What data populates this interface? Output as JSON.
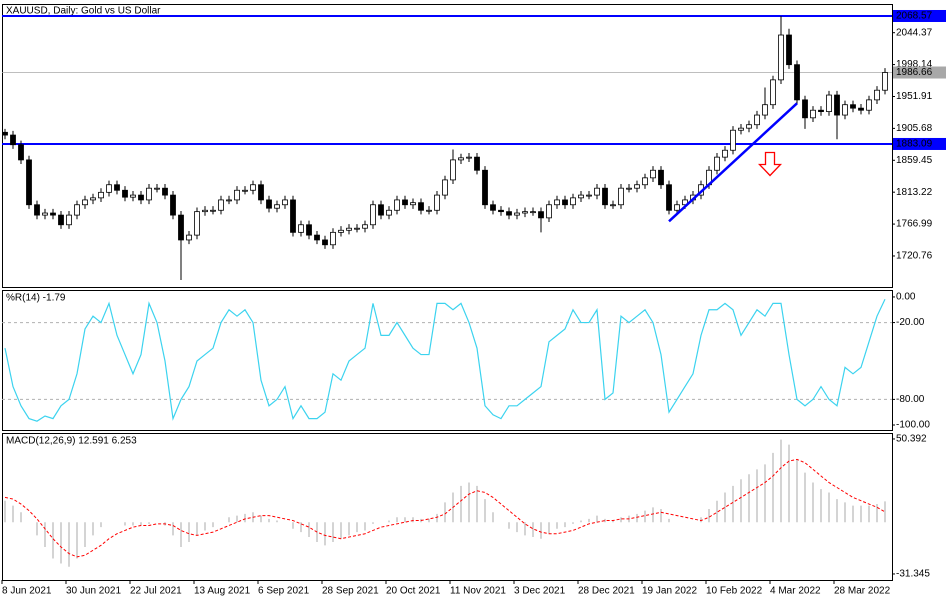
{
  "chart_data": [
    {
      "type": "candlestick",
      "title": "XAUUSD, Daily:  Gold vs US Dollar",
      "categories": [
        "8 Jun 2021",
        null,
        null,
        null,
        null,
        null,
        null,
        null,
        "30 Jun 2021",
        null,
        null,
        null,
        null,
        null,
        null,
        null,
        "22 Jul 2021",
        null,
        null,
        null,
        null,
        null,
        null,
        null,
        "13 Aug 2021",
        null,
        null,
        null,
        null,
        null,
        null,
        null,
        "6 Sep 2021",
        null,
        null,
        null,
        null,
        null,
        null,
        null,
        "28 Sep 2021",
        null,
        null,
        null,
        null,
        null,
        null,
        null,
        "20 Oct 2021",
        null,
        null,
        null,
        null,
        null,
        null,
        null,
        "11 Nov 2021",
        null,
        null,
        null,
        null,
        null,
        null,
        null,
        "3 Dec 2021",
        null,
        null,
        null,
        null,
        null,
        null,
        null,
        "28 Dec 2021",
        null,
        null,
        null,
        null,
        null,
        null,
        null,
        "19 Jan 2022",
        null,
        null,
        null,
        null,
        null,
        null,
        null,
        "10 Feb 2022",
        null,
        null,
        null,
        null,
        null,
        null,
        null,
        "4 Mar 2022",
        null,
        null,
        null,
        null,
        null,
        null,
        null,
        "28 Mar 2022",
        null,
        null,
        null,
        null,
        null,
        null
      ],
      "open": [
        1900,
        1896,
        1882,
        1860,
        1795,
        1780,
        1783,
        1780,
        1766,
        1780,
        1795,
        1802,
        1805,
        1813,
        1824,
        1816,
        1806,
        1809,
        1802,
        1819,
        1819,
        1809,
        1780,
        1744,
        1751,
        1785,
        1787,
        1787,
        1802,
        1802,
        1816,
        1816,
        1824,
        1802,
        1790,
        1795,
        1802,
        1755,
        1766,
        1751,
        1744,
        1737,
        1755,
        1758,
        1761,
        1761,
        1766,
        1795,
        1780,
        1787,
        1802,
        1795,
        1798,
        1787,
        1787,
        1809,
        1831,
        1860,
        1863,
        1864,
        1845,
        1795,
        1787,
        1785,
        1780,
        1783,
        1785,
        1785,
        1776,
        1795,
        1802,
        1795,
        1805,
        1809,
        1809,
        1819,
        1795,
        1795,
        1819,
        1819,
        1824,
        1834,
        1845,
        1824,
        1787,
        1795,
        1802,
        1809,
        1824,
        1845,
        1864,
        1874,
        1903,
        1906,
        1911,
        1925,
        1940,
        1976,
        2041,
        1998,
        1947,
        1921,
        1932,
        1930,
        1954,
        1925,
        1940,
        1935,
        1932,
        1947,
        1961
      ],
      "high": [
        1905,
        1902,
        1888,
        1866,
        1801,
        1789,
        1789,
        1786,
        1786,
        1801,
        1808,
        1811,
        1819,
        1830,
        1830,
        1822,
        1815,
        1815,
        1825,
        1825,
        1825,
        1815,
        1786,
        1757,
        1791,
        1793,
        1793,
        1808,
        1808,
        1822,
        1822,
        1830,
        1830,
        1808,
        1801,
        1808,
        1808,
        1772,
        1772,
        1757,
        1750,
        1761,
        1764,
        1767,
        1767,
        1772,
        1801,
        1801,
        1793,
        1808,
        1808,
        1804,
        1804,
        1793,
        1815,
        1837,
        1875,
        1869,
        1870,
        1870,
        1851,
        1801,
        1793,
        1791,
        1789,
        1791,
        1791,
        1791,
        1801,
        1808,
        1808,
        1811,
        1815,
        1815,
        1825,
        1825,
        1801,
        1825,
        1825,
        1830,
        1840,
        1851,
        1851,
        1830,
        1801,
        1808,
        1815,
        1830,
        1851,
        1870,
        1880,
        1909,
        1912,
        1917,
        1931,
        1965,
        1982,
        2068.57,
        2050,
        2004,
        1953,
        1938,
        1938,
        1960,
        1960,
        1946,
        1946,
        1941,
        1953,
        1967,
        1993
      ],
      "low": [
        1890,
        1876,
        1854,
        1789,
        1774,
        1774,
        1774,
        1760,
        1760,
        1774,
        1789,
        1796,
        1799,
        1807,
        1810,
        1800,
        1800,
        1796,
        1796,
        1813,
        1803,
        1774,
        1686,
        1738,
        1745,
        1779,
        1781,
        1781,
        1796,
        1796,
        1810,
        1810,
        1796,
        1784,
        1784,
        1789,
        1749,
        1749,
        1745,
        1738,
        1731,
        1731,
        1749,
        1752,
        1755,
        1755,
        1760,
        1774,
        1774,
        1781,
        1789,
        1789,
        1781,
        1781,
        1781,
        1803,
        1825,
        1854,
        1857,
        1839,
        1789,
        1781,
        1779,
        1774,
        1774,
        1777,
        1779,
        1755,
        1770,
        1789,
        1789,
        1789,
        1799,
        1803,
        1803,
        1789,
        1789,
        1789,
        1813,
        1813,
        1818,
        1828,
        1818,
        1781,
        1781,
        1789,
        1796,
        1803,
        1818,
        1839,
        1858,
        1868,
        1897,
        1900,
        1905,
        1919,
        1934,
        1970,
        1992,
        1941,
        1905,
        1915,
        1924,
        1924,
        1890,
        1919,
        1929,
        1926,
        1926,
        1941,
        1955
      ],
      "close": [
        1896,
        1882,
        1860,
        1795,
        1780,
        1783,
        1780,
        1766,
        1780,
        1795,
        1802,
        1805,
        1813,
        1824,
        1816,
        1806,
        1809,
        1802,
        1819,
        1819,
        1809,
        1780,
        1744,
        1751,
        1785,
        1787,
        1787,
        1802,
        1802,
        1816,
        1816,
        1824,
        1802,
        1790,
        1795,
        1802,
        1755,
        1766,
        1751,
        1744,
        1737,
        1755,
        1758,
        1761,
        1761,
        1766,
        1795,
        1780,
        1787,
        1802,
        1795,
        1798,
        1787,
        1787,
        1809,
        1831,
        1860,
        1863,
        1864,
        1845,
        1795,
        1787,
        1785,
        1780,
        1783,
        1785,
        1785,
        1776,
        1795,
        1802,
        1795,
        1805,
        1809,
        1809,
        1819,
        1795,
        1795,
        1819,
        1819,
        1824,
        1834,
        1845,
        1824,
        1787,
        1795,
        1802,
        1809,
        1824,
        1845,
        1864,
        1874,
        1903,
        1906,
        1911,
        1925,
        1940,
        1976,
        2041,
        1998,
        1947,
        1921,
        1932,
        1930,
        1954,
        1925,
        1940,
        1935,
        1932,
        1947,
        1961,
        1986.66
      ],
      "up_color": "#ffffff",
      "down_color": "#000000",
      "ylim": [
        1675.8,
        2084.5
      ],
      "yticks": [
        2044.37,
        1998.14,
        1951.91,
        1905.68,
        1859.45,
        1813.22,
        1766.99,
        1720.76
      ],
      "hlines": [
        {
          "value": 2068.57,
          "label": "2068.57",
          "color": "#0000ff"
        },
        {
          "value": 1883.09,
          "label": "1883.09",
          "color": "#0000ff"
        }
      ],
      "last_price": {
        "value": 1986.66,
        "label": "1986.66",
        "color": "#a8a8a8"
      },
      "trendline": {
        "x": [
          83,
          99
        ],
        "y": [
          1771,
          1942
        ],
        "color": "#0000ff"
      }
    },
    {
      "type": "line",
      "title": "%R(14) -1.79",
      "color": "#3cd3ef",
      "values": [
        -40,
        -70,
        -85,
        -95,
        -97,
        -93,
        -95,
        -85,
        -80,
        -60,
        -25,
        -15,
        -20,
        -5,
        -30,
        -45,
        -60,
        -45,
        -5,
        -20,
        -50,
        -95,
        -80,
        -70,
        -50,
        -45,
        -40,
        -20,
        -10,
        -15,
        -10,
        -20,
        -65,
        -85,
        -80,
        -70,
        -95,
        -85,
        -95,
        -95,
        -90,
        -60,
        -65,
        -50,
        -45,
        -40,
        -5,
        -30,
        -30,
        -20,
        -30,
        -40,
        -45,
        -45,
        -5,
        -5,
        -10,
        -5,
        -20,
        -40,
        -85,
        -92,
        -95,
        -85,
        -85,
        -80,
        -75,
        -70,
        -35,
        -30,
        -25,
        -10,
        -20,
        -20,
        -10,
        -80,
        -75,
        -15,
        -20,
        -15,
        -10,
        -20,
        -45,
        -90,
        -80,
        -70,
        -60,
        -30,
        -10,
        -10,
        -5,
        -10,
        -30,
        -20,
        -10,
        -15,
        -5,
        -5,
        -45,
        -80,
        -85,
        -80,
        -70,
        -80,
        -85,
        -55,
        -60,
        -55,
        -35,
        -15,
        -1.79
      ],
      "ylim": [
        -103.9,
        4.65
      ],
      "yticks": [
        {
          "value": 0,
          "label": "0.00"
        },
        {
          "value": -20,
          "label": "-20.00"
        },
        {
          "value": -80,
          "label": "-80.00"
        },
        {
          "value": -100,
          "label": "-100.00"
        }
      ]
    },
    {
      "type": "macd",
      "title": "MACD(12,26,9) 12.591 6.253",
      "histogram": [
        13,
        10,
        6,
        0,
        -8,
        -15,
        -22,
        -25,
        -27,
        -22,
        -15,
        -8,
        -3,
        0,
        0,
        -2,
        -2,
        -2,
        -1,
        0,
        -2,
        -8,
        -15,
        -12,
        -8,
        -5,
        -3,
        0,
        3,
        4,
        5,
        6,
        4,
        2,
        1,
        0,
        -4,
        -6,
        -9,
        -12,
        -14,
        -12,
        -10,
        -8,
        -6,
        -5,
        -1,
        0,
        1,
        3,
        3,
        3,
        2,
        2,
        5,
        12,
        18,
        22,
        24,
        22,
        14,
        6,
        0,
        -4,
        -6,
        -8,
        -9,
        -10,
        -7,
        -4,
        -3,
        -1,
        1,
        2,
        4,
        2,
        1,
        3,
        4,
        5,
        7,
        9,
        8,
        2,
        0,
        0,
        0,
        3,
        8,
        13,
        18,
        22,
        26,
        29,
        32,
        35,
        42,
        50,
        47,
        38,
        30,
        24,
        20,
        18,
        14,
        12,
        10,
        10,
        10,
        11,
        12.591
      ],
      "signal": [
        15,
        14,
        11,
        7,
        2,
        -4,
        -10,
        -15,
        -19,
        -21,
        -20,
        -17,
        -14,
        -10,
        -7,
        -5,
        -3,
        -2,
        -2,
        -1,
        -1,
        -2,
        -5,
        -7,
        -8,
        -7,
        -6,
        -4,
        -2,
        0,
        2,
        3,
        4,
        4,
        3,
        2,
        1,
        -1,
        -3,
        -6,
        -8,
        -9,
        -10,
        -9,
        -8,
        -7,
        -5,
        -3,
        -2,
        -1,
        0,
        1,
        1,
        2,
        3,
        5,
        9,
        13,
        17,
        19,
        18,
        15,
        11,
        7,
        3,
        -1,
        -4,
        -6,
        -7,
        -7,
        -6,
        -5,
        -3,
        -1,
        0,
        1,
        1,
        2,
        2,
        3,
        4,
        5,
        6,
        5,
        4,
        3,
        2,
        1,
        3,
        6,
        9,
        12,
        15,
        18,
        21,
        24,
        28,
        33,
        37,
        38,
        36,
        32,
        28,
        24,
        21,
        18,
        15,
        13,
        11,
        9,
        6.253
      ],
      "histogram_color": "#a9a9a9",
      "signal_color": "#ff0000",
      "ylim": [
        -35,
        53.4
      ],
      "yticks": [
        50.392,
        -31.345
      ]
    }
  ]
}
